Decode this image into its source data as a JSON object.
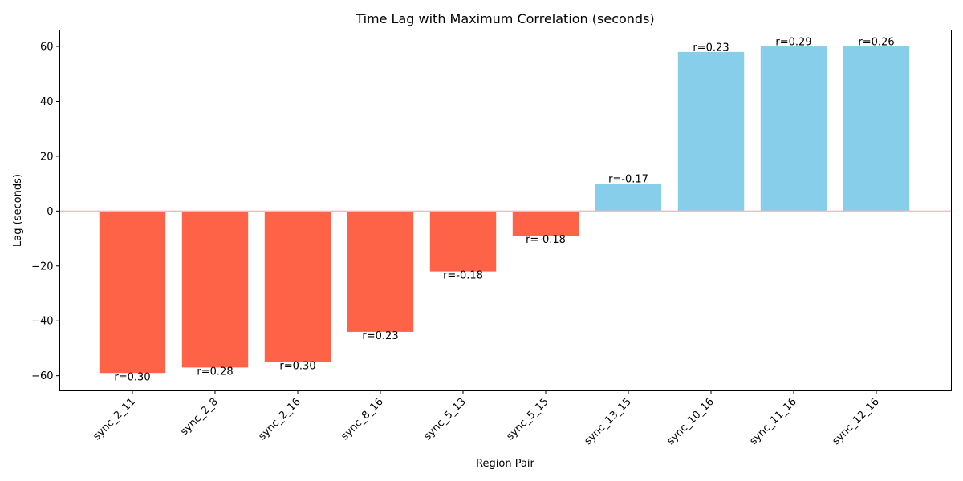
{
  "chart_data": {
    "type": "bar",
    "title": "Time Lag with Maximum Correlation (seconds)",
    "xlabel": "Region Pair",
    "ylabel": "Lag (seconds)",
    "categories": [
      "sync_2_11",
      "sync_2_8",
      "sync_2_16",
      "sync_8_16",
      "sync_5_13",
      "sync_5_15",
      "sync_13_15",
      "sync_10_16",
      "sync_11_16",
      "sync_12_16"
    ],
    "values": [
      -59,
      -57,
      -55,
      -44,
      -22,
      -9,
      10,
      58,
      60,
      60
    ],
    "annotations": [
      "r=0.30",
      "r=0.28",
      "r=0.30",
      "r=0.23",
      "r=-0.18",
      "r=-0.18",
      "r=-0.17",
      "r=0.23",
      "r=0.29",
      "r=0.26"
    ],
    "ylim": [
      -65.5,
      66
    ],
    "yticks": [
      -60,
      -40,
      -20,
      0,
      20,
      40,
      60
    ],
    "grid": false,
    "reference_line": 0,
    "colors": {
      "negative": "#ff6347",
      "positive": "#87ceeb",
      "reference_line": "#ffb6c1"
    }
  }
}
